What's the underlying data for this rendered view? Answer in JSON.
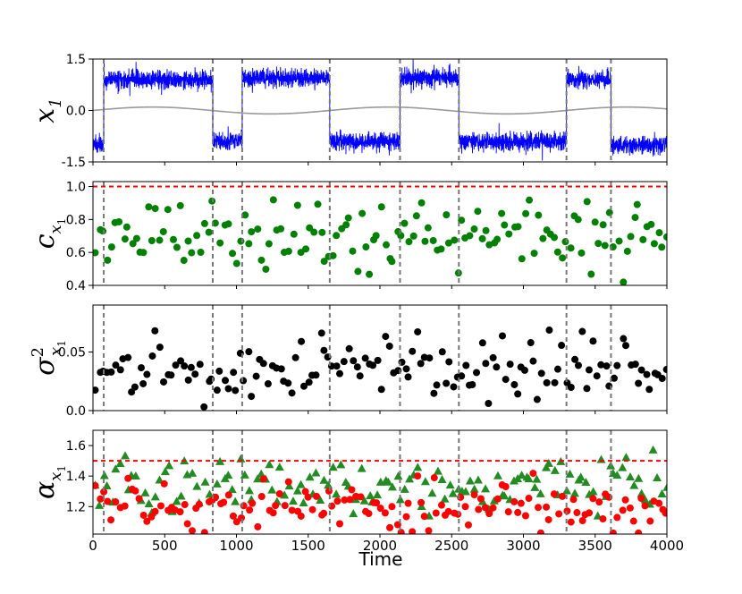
{
  "chart_data": {
    "x_axis": {
      "label": "Time",
      "range": [
        0,
        4000
      ],
      "ticks": [
        0,
        500,
        1000,
        1500,
        2000,
        2500,
        3000,
        3500,
        4000
      ],
      "tick_labels": [
        "0",
        "500",
        "1000",
        "1500",
        "2000",
        "2500",
        "3000",
        "3500",
        "4000"
      ]
    },
    "transition_times": [
      75,
      835,
      1040,
      1650,
      2140,
      2550,
      3300,
      3610
    ],
    "panels": [
      {
        "id": "x1",
        "type": "line",
        "ylabel_base": "x",
        "ylabel_sub": "1",
        "ylim": [
          -1.5,
          1.5
        ],
        "yticks": [
          "1.5",
          "0.0",
          "-1.5"
        ],
        "yticks_values": [
          1.5,
          0.0,
          -1.5
        ],
        "series": [
          {
            "name": "state",
            "color": "#0000ff",
            "regimes": [
              {
                "start": 0,
                "end": 75,
                "level": -1.0
              },
              {
                "start": 75,
                "end": 835,
                "level": 0.9
              },
              {
                "start": 835,
                "end": 1040,
                "level": -0.9
              },
              {
                "start": 1040,
                "end": 1650,
                "level": 0.95
              },
              {
                "start": 1650,
                "end": 2140,
                "level": -0.9
              },
              {
                "start": 2140,
                "end": 2550,
                "level": 0.95
              },
              {
                "start": 2550,
                "end": 3300,
                "level": -0.9
              },
              {
                "start": 3300,
                "end": 3610,
                "level": 0.9
              },
              {
                "start": 3610,
                "end": 4000,
                "level": -1.0
              }
            ],
            "noise_sd": 0.13
          },
          {
            "name": "forcing",
            "color": "#999999",
            "amplitude": 0.1,
            "period": 1650,
            "offset": 0.0
          }
        ]
      },
      {
        "id": "c",
        "type": "scatter",
        "ylabel_base": "c",
        "ylabel_sub": "x",
        "ylabel_subsub": "1",
        "ylim": [
          0.4,
          1.03
        ],
        "yticks": [
          "1.0",
          "0.8",
          "0.6",
          "0.4"
        ],
        "yticks_values": [
          1.0,
          0.8,
          0.6,
          0.4
        ],
        "threshold": 1.0,
        "threshold_color": "#ff0000",
        "series": [
          {
            "name": "autocorrelation",
            "color": "#008000",
            "marker": "circle",
            "mean": 0.69,
            "spread": 0.12,
            "seed": 11
          }
        ]
      },
      {
        "id": "sigma",
        "type": "scatter",
        "ylabel_base": "σ",
        "ylabel_sup": "2",
        "ylabel_sub": "x",
        "ylabel_subsub": "1",
        "ylim": [
          0.0,
          0.09
        ],
        "yticks": [
          "0.05",
          "0.0"
        ],
        "yticks_values": [
          0.05,
          0.0
        ],
        "series": [
          {
            "name": "variance",
            "color": "#000000",
            "marker": "circle",
            "mean": 0.033,
            "spread": 0.015,
            "seed": 23
          }
        ]
      },
      {
        "id": "alpha",
        "type": "scatter",
        "ylabel_base": "α",
        "ylabel_sub": "x",
        "ylabel_subsub": "1",
        "ylim": [
          1.02,
          1.7
        ],
        "yticks": [
          "1.6",
          "1.4",
          "1.2"
        ],
        "yticks_values": [
          1.6,
          1.4,
          1.2
        ],
        "threshold": 1.5,
        "threshold_color": "#ff0000",
        "series": [
          {
            "name": "alpha-triangles",
            "color": "#228b22",
            "marker": "triangle",
            "mean": 1.33,
            "spread": 0.1,
            "seed": 37
          },
          {
            "name": "alpha-circles",
            "color": "#ff0000",
            "marker": "circle",
            "mean": 1.2,
            "spread": 0.1,
            "seed": 53
          }
        ]
      }
    ]
  }
}
